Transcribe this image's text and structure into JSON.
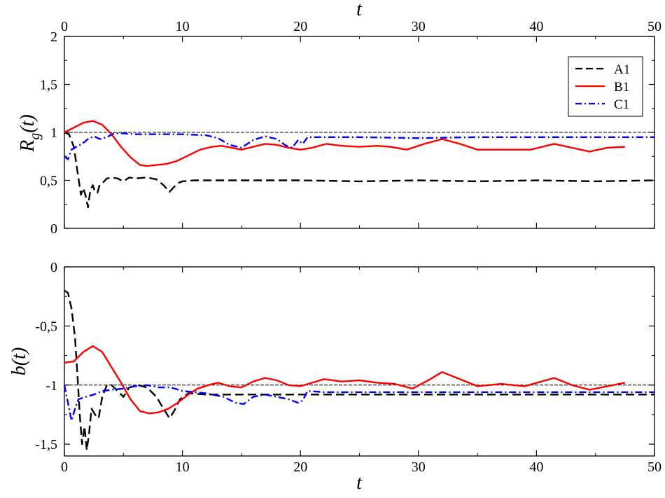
{
  "chart_data": [
    {
      "id": "top",
      "type": "line",
      "ylabel_main": "R",
      "ylabel_sub": "g",
      "ylabel_tail": "(t)",
      "top_xlabel": "t",
      "xlim": [
        0,
        50
      ],
      "ylim": [
        0,
        2
      ],
      "xticks": [
        "0",
        "10",
        "20",
        "30",
        "40",
        "50"
      ],
      "yticks": [
        "0",
        "0,5",
        "1",
        "1,5",
        "2"
      ],
      "reference_line": 1,
      "legend_position": "top-right",
      "series": [
        {
          "name": "A1",
          "color": "#000000",
          "style": "dashed",
          "points": [
            [
              0,
              1.0
            ],
            [
              0.4,
              0.98
            ],
            [
              0.8,
              0.85
            ],
            [
              1.1,
              0.6
            ],
            [
              1.4,
              0.35
            ],
            [
              1.6,
              0.42
            ],
            [
              1.8,
              0.34
            ],
            [
              2.0,
              0.22
            ],
            [
              2.2,
              0.4
            ],
            [
              2.4,
              0.45
            ],
            [
              2.6,
              0.38
            ],
            [
              2.8,
              0.37
            ],
            [
              3.0,
              0.46
            ],
            [
              3.3,
              0.48
            ],
            [
              3.6,
              0.52
            ],
            [
              4.0,
              0.53
            ],
            [
              4.5,
              0.52
            ],
            [
              5.0,
              0.49
            ],
            [
              5.5,
              0.53
            ],
            [
              6.0,
              0.52
            ],
            [
              7.0,
              0.53
            ],
            [
              7.8,
              0.51
            ],
            [
              8.4,
              0.45
            ],
            [
              8.9,
              0.38
            ],
            [
              9.2,
              0.42
            ],
            [
              9.6,
              0.47
            ],
            [
              10,
              0.49
            ],
            [
              11,
              0.5
            ],
            [
              15,
              0.5
            ],
            [
              20,
              0.5
            ],
            [
              25,
              0.49
            ],
            [
              30,
              0.5
            ],
            [
              35,
              0.49
            ],
            [
              40,
              0.5
            ],
            [
              45,
              0.49
            ],
            [
              50,
              0.5
            ]
          ]
        },
        {
          "name": "B1",
          "color": "#ff0000",
          "style": "solid",
          "points": [
            [
              0,
              1.0
            ],
            [
              0.8,
              1.05
            ],
            [
              1.6,
              1.1
            ],
            [
              2.4,
              1.12
            ],
            [
              3.2,
              1.08
            ],
            [
              4.0,
              0.98
            ],
            [
              4.8,
              0.85
            ],
            [
              5.6,
              0.74
            ],
            [
              6.4,
              0.66
            ],
            [
              7.0,
              0.65
            ],
            [
              7.8,
              0.66
            ],
            [
              8.6,
              0.67
            ],
            [
              9.5,
              0.7
            ],
            [
              10.5,
              0.76
            ],
            [
              11.5,
              0.82
            ],
            [
              12.5,
              0.85
            ],
            [
              13.3,
              0.86
            ],
            [
              14.2,
              0.84
            ],
            [
              15.0,
              0.82
            ],
            [
              16.0,
              0.85
            ],
            [
              17.0,
              0.88
            ],
            [
              18.0,
              0.87
            ],
            [
              19.0,
              0.84
            ],
            [
              20.0,
              0.82
            ],
            [
              21.0,
              0.84
            ],
            [
              22.2,
              0.88
            ],
            [
              23.5,
              0.86
            ],
            [
              25.0,
              0.85
            ],
            [
              26.5,
              0.86
            ],
            [
              27.6,
              0.85
            ],
            [
              29.0,
              0.82
            ],
            [
              30.5,
              0.88
            ],
            [
              32.0,
              0.93
            ],
            [
              33.5,
              0.88
            ],
            [
              35.0,
              0.82
            ],
            [
              36.5,
              0.82
            ],
            [
              38.0,
              0.82
            ],
            [
              39.5,
              0.82
            ],
            [
              41.5,
              0.88
            ],
            [
              43.0,
              0.84
            ],
            [
              44.5,
              0.8
            ],
            [
              46.0,
              0.84
            ],
            [
              47.5,
              0.85
            ]
          ]
        },
        {
          "name": "C1",
          "color": "#0000ff",
          "style": "dashdot",
          "points": [
            [
              0,
              0.75
            ],
            [
              0.3,
              0.72
            ],
            [
              0.6,
              0.82
            ],
            [
              1.0,
              0.85
            ],
            [
              1.5,
              0.88
            ],
            [
              2.0,
              0.93
            ],
            [
              2.5,
              0.96
            ],
            [
              3.0,
              0.93
            ],
            [
              3.6,
              0.95
            ],
            [
              4.2,
              0.99
            ],
            [
              5,
              0.99
            ],
            [
              6,
              0.98
            ],
            [
              8,
              0.98
            ],
            [
              10,
              0.98
            ],
            [
              12,
              0.97
            ],
            [
              13,
              0.94
            ],
            [
              14,
              0.87
            ],
            [
              15,
              0.84
            ],
            [
              16,
              0.92
            ],
            [
              17,
              0.96
            ],
            [
              18,
              0.93
            ],
            [
              18.8,
              0.86
            ],
            [
              19.3,
              0.84
            ],
            [
              19.8,
              0.92
            ],
            [
              20.2,
              0.88
            ],
            [
              20.6,
              0.95
            ],
            [
              22,
              0.95
            ],
            [
              25,
              0.95
            ],
            [
              30,
              0.94
            ],
            [
              35,
              0.95
            ],
            [
              40,
              0.95
            ],
            [
              45,
              0.95
            ],
            [
              50,
              0.95
            ]
          ]
        }
      ]
    },
    {
      "id": "bottom",
      "type": "line",
      "ylabel": "b(t)",
      "xlabel": "t",
      "xlim": [
        0,
        50
      ],
      "ylim": [
        -1.6,
        0
      ],
      "xticks": [
        "0",
        "10",
        "20",
        "30",
        "40",
        "50"
      ],
      "yticks": [
        "-1,5",
        "-1",
        "-0,5",
        "0"
      ],
      "reference_line": -1,
      "series": [
        {
          "name": "A1",
          "color": "#000000",
          "style": "dashed",
          "points": [
            [
              0,
              -0.2
            ],
            [
              0.3,
              -0.22
            ],
            [
              0.6,
              -0.35
            ],
            [
              0.9,
              -0.6
            ],
            [
              1.1,
              -0.9
            ],
            [
              1.3,
              -1.25
            ],
            [
              1.5,
              -1.5
            ],
            [
              1.7,
              -1.35
            ],
            [
              1.9,
              -1.55
            ],
            [
              2.1,
              -1.4
            ],
            [
              2.3,
              -1.2
            ],
            [
              2.6,
              -1.25
            ],
            [
              2.9,
              -1.28
            ],
            [
              3.2,
              -1.1
            ],
            [
              3.6,
              -1.0
            ],
            [
              4.0,
              -1.0
            ],
            [
              4.5,
              -1.05
            ],
            [
              5.0,
              -1.1
            ],
            [
              5.5,
              -1.02
            ],
            [
              6.2,
              -1.0
            ],
            [
              7.0,
              -1.02
            ],
            [
              7.8,
              -1.1
            ],
            [
              8.4,
              -1.2
            ],
            [
              8.9,
              -1.28
            ],
            [
              9.3,
              -1.22
            ],
            [
              9.8,
              -1.12
            ],
            [
              10.5,
              -1.07
            ],
            [
              12,
              -1.08
            ],
            [
              15,
              -1.08
            ],
            [
              20,
              -1.08
            ],
            [
              25,
              -1.08
            ],
            [
              30,
              -1.08
            ],
            [
              35,
              -1.08
            ],
            [
              40,
              -1.08
            ],
            [
              45,
              -1.08
            ],
            [
              50,
              -1.08
            ]
          ]
        },
        {
          "name": "B1",
          "color": "#ff0000",
          "style": "solid",
          "points": [
            [
              0,
              -0.81
            ],
            [
              0.8,
              -0.8
            ],
            [
              1.6,
              -0.72
            ],
            [
              2.4,
              -0.67
            ],
            [
              3.2,
              -0.72
            ],
            [
              4.0,
              -0.85
            ],
            [
              4.8,
              -0.98
            ],
            [
              5.6,
              -1.12
            ],
            [
              6.4,
              -1.22
            ],
            [
              7.2,
              -1.24
            ],
            [
              8.0,
              -1.23
            ],
            [
              8.8,
              -1.2
            ],
            [
              9.6,
              -1.15
            ],
            [
              10.5,
              -1.08
            ],
            [
              11.3,
              -1.03
            ],
            [
              12.2,
              -1.0
            ],
            [
              13.0,
              -0.98
            ],
            [
              14.0,
              -1.01
            ],
            [
              15.0,
              -1.02
            ],
            [
              16.0,
              -0.97
            ],
            [
              17.0,
              -0.94
            ],
            [
              18.0,
              -0.96
            ],
            [
              19.0,
              -1.0
            ],
            [
              20.0,
              -1.01
            ],
            [
              21.0,
              -0.98
            ],
            [
              22.0,
              -0.95
            ],
            [
              23.5,
              -0.97
            ],
            [
              25.0,
              -0.96
            ],
            [
              26.5,
              -0.98
            ],
            [
              28.0,
              -0.99
            ],
            [
              29.5,
              -1.03
            ],
            [
              31.0,
              -0.95
            ],
            [
              32.0,
              -0.89
            ],
            [
              33.5,
              -0.95
            ],
            [
              35.0,
              -1.01
            ],
            [
              37.0,
              -0.99
            ],
            [
              39.0,
              -1.01
            ],
            [
              41.5,
              -0.94
            ],
            [
              43.0,
              -1.0
            ],
            [
              44.5,
              -1.04
            ],
            [
              46.0,
              -1.01
            ],
            [
              47.5,
              -0.98
            ]
          ]
        },
        {
          "name": "C1",
          "color": "#0000ff",
          "style": "dashdot",
          "points": [
            [
              0,
              -1.0
            ],
            [
              0.3,
              -1.15
            ],
            [
              0.6,
              -1.3
            ],
            [
              0.9,
              -1.2
            ],
            [
              1.2,
              -1.12
            ],
            [
              1.8,
              -1.1
            ],
            [
              2.5,
              -1.08
            ],
            [
              3.2,
              -1.05
            ],
            [
              4.0,
              -1.04
            ],
            [
              5,
              -1.03
            ],
            [
              6,
              -1.01
            ],
            [
              7,
              -1.0
            ],
            [
              8,
              -1.02
            ],
            [
              9,
              -1.02
            ],
            [
              10,
              -1.05
            ],
            [
              12,
              -1.07
            ],
            [
              13.5,
              -1.1
            ],
            [
              14.5,
              -1.15
            ],
            [
              15.2,
              -1.16
            ],
            [
              16,
              -1.1
            ],
            [
              17,
              -1.08
            ],
            [
              18,
              -1.1
            ],
            [
              19,
              -1.12
            ],
            [
              19.8,
              -1.15
            ],
            [
              20.2,
              -1.13
            ],
            [
              20.6,
              -1.05
            ],
            [
              22,
              -1.06
            ],
            [
              25,
              -1.06
            ],
            [
              30,
              -1.06
            ],
            [
              35,
              -1.06
            ],
            [
              40,
              -1.06
            ],
            [
              45,
              -1.06
            ],
            [
              50,
              -1.06
            ]
          ]
        }
      ]
    }
  ]
}
